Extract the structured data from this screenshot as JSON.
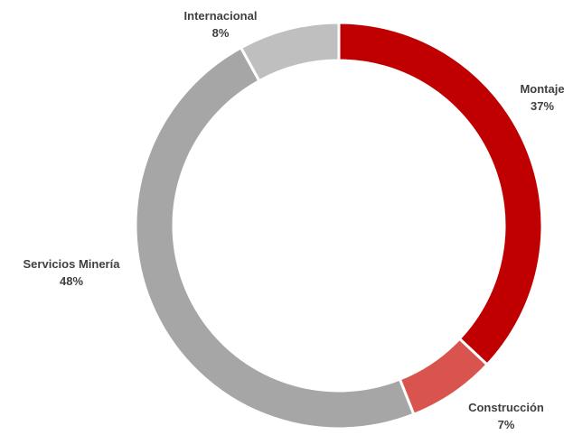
{
  "chart_data": {
    "type": "pie",
    "categories": [
      "Montaje",
      "Construcción",
      "Servicios Minería",
      "Internacional"
    ],
    "values": [
      37,
      7,
      48,
      8
    ],
    "value_labels": [
      "37%",
      "7%",
      "48%",
      "8%"
    ],
    "colors": [
      "#c00000",
      "#d9534f",
      "#a6a6a6",
      "#bfbfbf"
    ],
    "donut": true,
    "legend": "none",
    "title": ""
  }
}
